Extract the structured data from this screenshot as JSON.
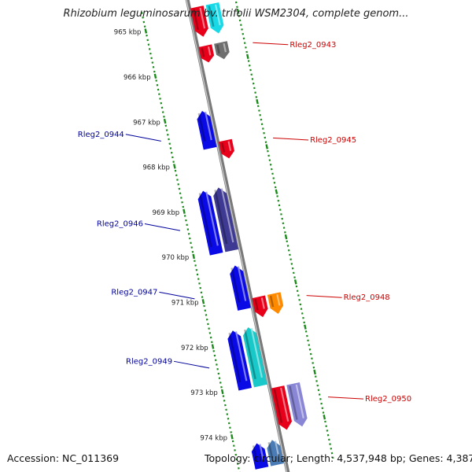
{
  "title": "Rhizobium leguminosarum bv. trifolii WSM2304, complete genom...",
  "accession": "Accession: NC_011369",
  "summary": "Topology: circular; Length: 4,537,948 bp; Genes: 4,387",
  "ticks": [
    "965 kbp",
    "966 kbp",
    "967 kbp",
    "968 kbp",
    "969 kbp",
    "970 kbp",
    "971 kbp",
    "972 kbp",
    "973 kbp",
    "974 kbp"
  ],
  "genes": [
    {
      "name": "",
      "strand": "+",
      "color": "#e8001b",
      "start": 964.72,
      "end": 965.38
    },
    {
      "name": "",
      "strand": "+",
      "color": "#19d9e6",
      "start": 964.72,
      "end": 965.38
    },
    {
      "name": "Rleg2_0943",
      "strand": "+",
      "color": "#e8001b",
      "start": 965.58,
      "end": 965.95
    },
    {
      "name": "",
      "strand": "+",
      "color": "#6f6f6f",
      "start": 965.58,
      "end": 965.95
    },
    {
      "name": "Rleg2_0944",
      "strand": "-",
      "color": "#0a0ae6",
      "start": 966.95,
      "end": 967.78
    },
    {
      "name": "Rleg2_0945",
      "strand": "+",
      "color": "#e8001b",
      "start": 967.68,
      "end": 968.08
    },
    {
      "name": "Rleg2_0946",
      "strand": "-",
      "color": "#3e3a93",
      "start": 968.65,
      "end": 970.05
    },
    {
      "name": "",
      "strand": "-",
      "color": "#0a0ae6",
      "start": 968.65,
      "end": 970.05
    },
    {
      "name": "Rleg2_0947",
      "strand": "-",
      "color": "#0a0ae6",
      "start": 970.38,
      "end": 971.35
    },
    {
      "name": "Rleg2_0948",
      "strand": "+",
      "color": "#e8001b",
      "start": 971.15,
      "end": 971.6
    },
    {
      "name": "",
      "strand": "+",
      "color": "#ff8a00",
      "start": 971.15,
      "end": 971.6
    },
    {
      "name": "Rleg2_0949",
      "strand": "-",
      "color": "#19c9c9",
      "start": 971.75,
      "end": 973.05
    },
    {
      "name": "",
      "strand": "-",
      "color": "#0a0ae6",
      "start": 971.75,
      "end": 973.05
    },
    {
      "name": "Rleg2_0950",
      "strand": "+",
      "color": "#e8001b",
      "start": 973.15,
      "end": 974.1
    },
    {
      "name": "",
      "strand": "+",
      "color": "#8a86d6",
      "start": 973.15,
      "end": 974.1
    },
    {
      "name": "",
      "strand": "-",
      "color": "#4a7bb5",
      "start": 974.25,
      "end": 974.8
    },
    {
      "name": "",
      "strand": "-",
      "color": "#0a0ae6",
      "start": 974.25,
      "end": 974.8
    }
  ],
  "colors": {
    "forward_label": "#cc0000",
    "reverse_label": "#00009a",
    "tick": "#1a8a1a",
    "backbone": "#7a7a7a"
  }
}
